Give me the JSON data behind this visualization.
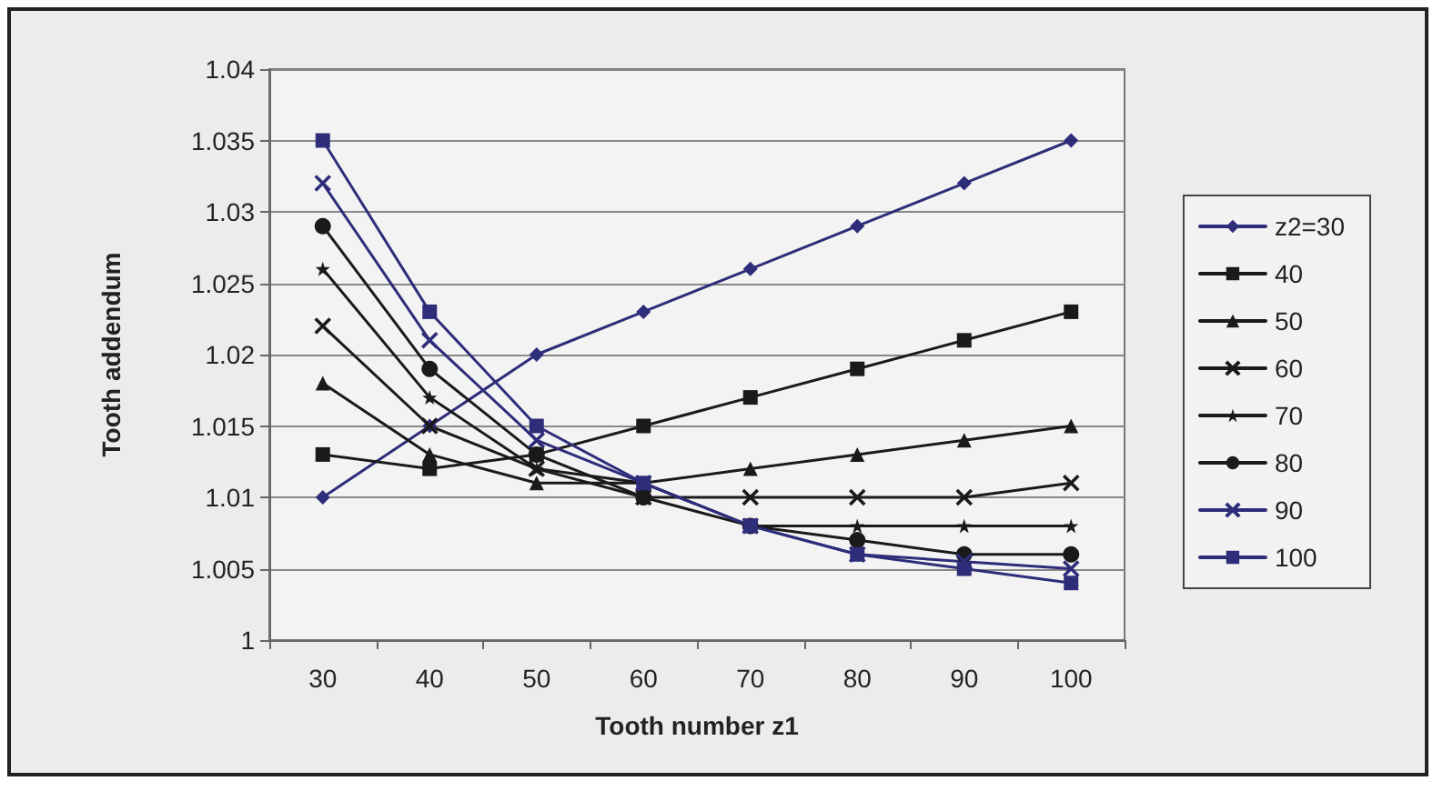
{
  "chart_data": {
    "type": "line",
    "xlabel": "Tooth number z1",
    "ylabel": "Tooth addendum",
    "categories": [
      "30",
      "40",
      "50",
      "60",
      "70",
      "80",
      "90",
      "100"
    ],
    "series": [
      {
        "name": "z2=30",
        "color": "#2e2d7a",
        "marker": "diamond",
        "values": [
          1.01,
          1.015,
          1.02,
          1.023,
          1.026,
          1.029,
          1.032,
          1.035
        ]
      },
      {
        "name": "40",
        "color": "#1a1a1a",
        "marker": "square",
        "values": [
          1.013,
          1.012,
          1.013,
          1.015,
          1.017,
          1.019,
          1.021,
          1.023
        ]
      },
      {
        "name": "50",
        "color": "#1a1a1a",
        "marker": "triangle",
        "values": [
          1.018,
          1.013,
          1.011,
          1.011,
          1.012,
          1.013,
          1.014,
          1.015
        ]
      },
      {
        "name": "60",
        "color": "#1a1a1a",
        "marker": "cross",
        "values": [
          1.022,
          1.015,
          1.012,
          1.01,
          1.01,
          1.01,
          1.01,
          1.011
        ]
      },
      {
        "name": "70",
        "color": "#1a1a1a",
        "marker": "star",
        "values": [
          1.026,
          1.017,
          1.012,
          1.011,
          1.008,
          1.008,
          1.008,
          1.008
        ]
      },
      {
        "name": "80",
        "color": "#1a1a1a",
        "marker": "circle",
        "values": [
          1.029,
          1.019,
          1.013,
          1.01,
          1.008,
          1.007,
          1.006,
          1.006
        ]
      },
      {
        "name": "90",
        "color": "#2e2d7a",
        "marker": "cross",
        "values": [
          1.032,
          1.021,
          1.014,
          1.011,
          1.008,
          1.006,
          1.0055,
          1.005
        ]
      },
      {
        "name": "100",
        "color": "#2e2d7a",
        "marker": "square",
        "values": [
          1.035,
          1.023,
          1.015,
          1.011,
          1.008,
          1.006,
          1.005,
          1.004
        ]
      }
    ],
    "ylim": [
      1,
      1.04
    ],
    "yticks": [
      1,
      1.005,
      1.01,
      1.015,
      1.02,
      1.025,
      1.03,
      1.035,
      1.04
    ],
    "grid": "y",
    "legend": "right",
    "line_style": "solid"
  }
}
